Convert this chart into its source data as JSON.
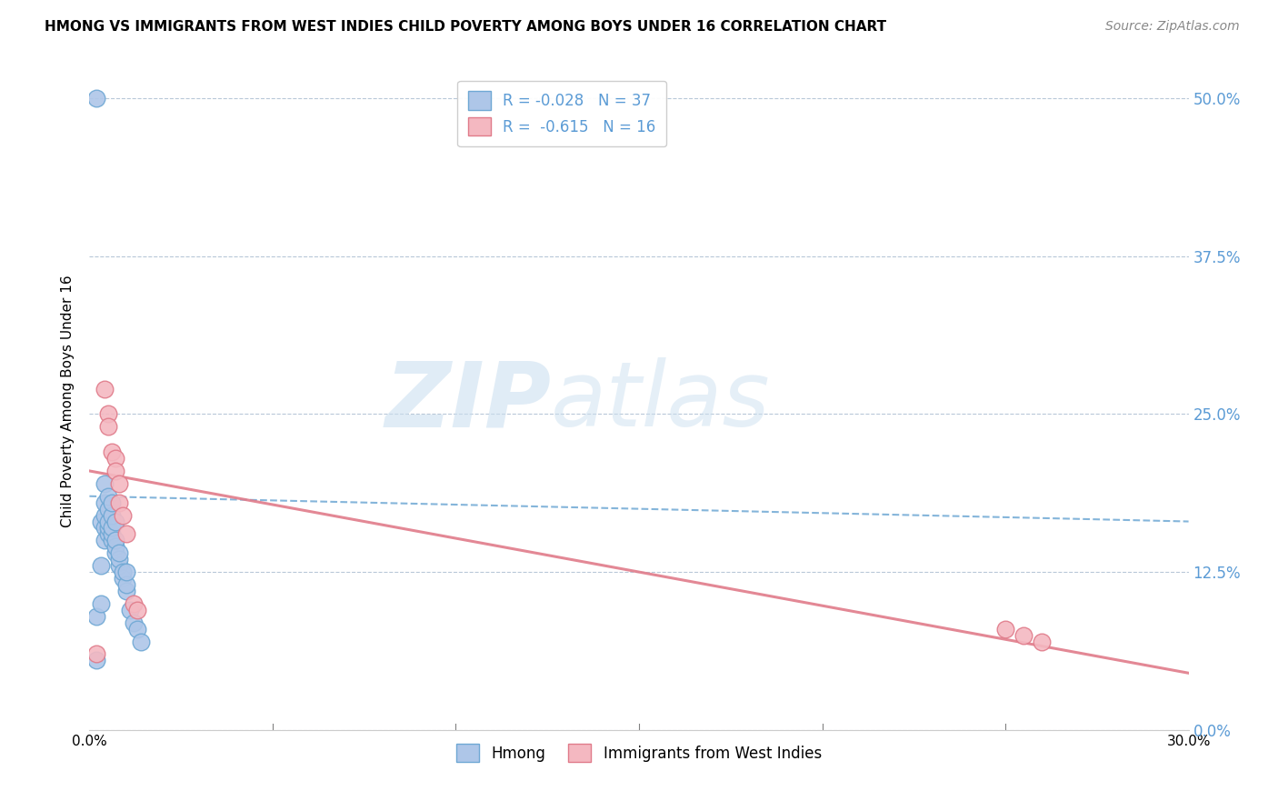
{
  "title": "HMONG VS IMMIGRANTS FROM WEST INDIES CHILD POVERTY AMONG BOYS UNDER 16 CORRELATION CHART",
  "source": "Source: ZipAtlas.com",
  "ylabel": "Child Poverty Among Boys Under 16",
  "xlim": [
    0.0,
    0.3
  ],
  "ylim": [
    0.0,
    0.52
  ],
  "ytick_labels_right": [
    "50.0%",
    "37.5%",
    "25.0%",
    "12.5%",
    "0.0%"
  ],
  "ytick_positions_right": [
    0.5,
    0.375,
    0.25,
    0.125,
    0.0
  ],
  "hmong_color": "#aec6e8",
  "hmong_edge_color": "#6fa8d4",
  "west_indies_color": "#f4b8c1",
  "west_indies_edge_color": "#e07b8a",
  "hmong_R": -0.028,
  "hmong_N": 37,
  "west_indies_R": -0.615,
  "west_indies_N": 16,
  "legend_label_bottom_hmong": "Hmong",
  "legend_label_bottom_wi": "Immigrants from West Indies",
  "background_color": "#ffffff",
  "grid_color": "#b8c8d8",
  "right_tick_color": "#5b9bd5",
  "hmong_points_x": [
    0.002,
    0.002,
    0.003,
    0.003,
    0.003,
    0.004,
    0.004,
    0.004,
    0.004,
    0.004,
    0.005,
    0.005,
    0.005,
    0.005,
    0.005,
    0.006,
    0.006,
    0.006,
    0.006,
    0.006,
    0.007,
    0.007,
    0.007,
    0.007,
    0.008,
    0.008,
    0.008,
    0.009,
    0.009,
    0.01,
    0.01,
    0.01,
    0.011,
    0.012,
    0.013,
    0.014,
    0.002
  ],
  "hmong_points_y": [
    0.055,
    0.09,
    0.1,
    0.13,
    0.165,
    0.15,
    0.16,
    0.17,
    0.18,
    0.195,
    0.155,
    0.16,
    0.165,
    0.175,
    0.185,
    0.15,
    0.155,
    0.16,
    0.17,
    0.18,
    0.14,
    0.145,
    0.15,
    0.165,
    0.13,
    0.135,
    0.14,
    0.12,
    0.125,
    0.11,
    0.115,
    0.125,
    0.095,
    0.085,
    0.08,
    0.07,
    0.5
  ],
  "wi_points_x": [
    0.002,
    0.004,
    0.005,
    0.005,
    0.006,
    0.007,
    0.007,
    0.008,
    0.008,
    0.009,
    0.01,
    0.012,
    0.013,
    0.25,
    0.255,
    0.26
  ],
  "wi_points_y": [
    0.06,
    0.27,
    0.25,
    0.24,
    0.22,
    0.215,
    0.205,
    0.195,
    0.18,
    0.17,
    0.155,
    0.1,
    0.095,
    0.08,
    0.075,
    0.07
  ],
  "hmong_line_x": [
    0.0,
    0.3
  ],
  "hmong_line_y": [
    0.185,
    0.165
  ],
  "wi_line_x": [
    0.0,
    0.3
  ],
  "wi_line_y": [
    0.205,
    0.045
  ]
}
